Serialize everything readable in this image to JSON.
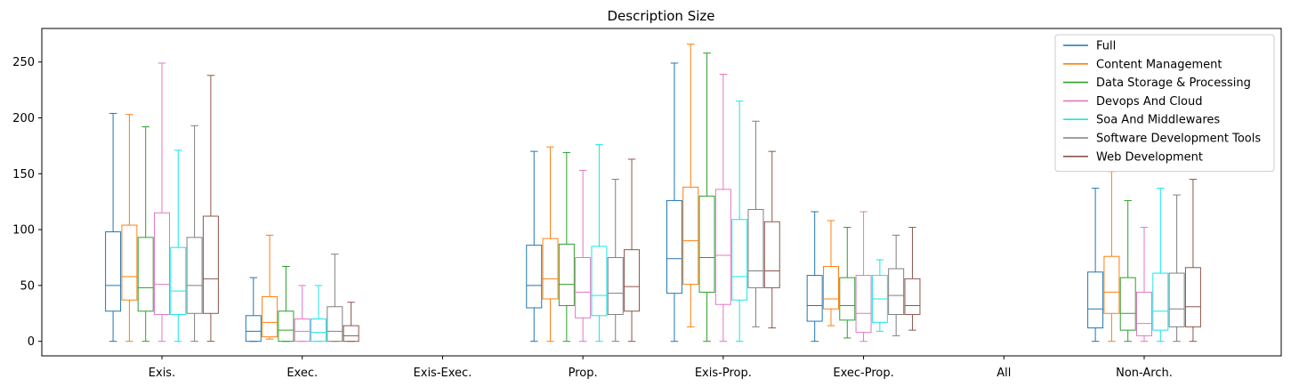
{
  "chart_data": {
    "type": "boxplot",
    "title": "Description Size",
    "xlabel": "",
    "ylabel": "",
    "ylim": [
      -13,
      280
    ],
    "yticks": [
      0,
      50,
      100,
      150,
      200,
      250
    ],
    "grid": false,
    "legend_position": "top-right",
    "categories": [
      "Exis.",
      "Exec.",
      "Exis-Exec.",
      "Prop.",
      "Exis-Prop.",
      "Exec-Prop.",
      "All",
      "Non-Arch."
    ],
    "series": [
      {
        "name": "Full",
        "color": "#1f77b4",
        "boxes": [
          {
            "whisker_low": 0,
            "q1": 27,
            "median": 50,
            "q3": 98,
            "whisker_high": 204
          },
          {
            "whisker_low": 0,
            "q1": 0,
            "median": 9,
            "q3": 23,
            "whisker_high": 57
          },
          null,
          {
            "whisker_low": 0,
            "q1": 30,
            "median": 50,
            "q3": 86,
            "whisker_high": 170
          },
          {
            "whisker_low": 0,
            "q1": 43,
            "median": 74,
            "q3": 126,
            "whisker_high": 249
          },
          {
            "whisker_low": 0,
            "q1": 18,
            "median": 32,
            "q3": 59,
            "whisker_high": 116
          },
          null,
          {
            "whisker_low": 0,
            "q1": 12,
            "median": 29,
            "q3": 62,
            "whisker_high": 137
          }
        ]
      },
      {
        "name": "Content Management",
        "color": "#ff7f0e",
        "boxes": [
          {
            "whisker_low": 0,
            "q1": 37,
            "median": 58,
            "q3": 104,
            "whisker_high": 203
          },
          {
            "whisker_low": 2,
            "q1": 4,
            "median": 17,
            "q3": 40,
            "whisker_high": 95
          },
          null,
          {
            "whisker_low": 0,
            "q1": 38,
            "median": 56,
            "q3": 92,
            "whisker_high": 174
          },
          {
            "whisker_low": 13,
            "q1": 51,
            "median": 90,
            "q3": 138,
            "whisker_high": 266
          },
          {
            "whisker_low": 14,
            "q1": 29,
            "median": 38,
            "q3": 67,
            "whisker_high": 108
          },
          null,
          {
            "whisker_low": 0,
            "q1": 25,
            "median": 44,
            "q3": 76,
            "whisker_high": 152
          }
        ]
      },
      {
        "name": "Data Storage & Processing",
        "color": "#2ca02c",
        "boxes": [
          {
            "whisker_low": 0,
            "q1": 27,
            "median": 48,
            "q3": 93,
            "whisker_high": 192
          },
          {
            "whisker_low": 0,
            "q1": 0,
            "median": 10,
            "q3": 27,
            "whisker_high": 67
          },
          null,
          {
            "whisker_low": 0,
            "q1": 32,
            "median": 51,
            "q3": 87,
            "whisker_high": 169
          },
          {
            "whisker_low": 0,
            "q1": 44,
            "median": 75,
            "q3": 130,
            "whisker_high": 258
          },
          {
            "whisker_low": 3,
            "q1": 19,
            "median": 32,
            "q3": 57,
            "whisker_high": 102
          },
          null,
          {
            "whisker_low": 0,
            "q1": 10,
            "median": 25,
            "q3": 57,
            "whisker_high": 126
          }
        ]
      },
      {
        "name": "Devops And Cloud",
        "color": "#e377c2",
        "boxes": [
          {
            "whisker_low": 0,
            "q1": 24,
            "median": 51,
            "q3": 115,
            "whisker_high": 249
          },
          {
            "whisker_low": 0,
            "q1": 0,
            "median": 9,
            "q3": 20,
            "whisker_high": 50
          },
          null,
          {
            "whisker_low": 0,
            "q1": 21,
            "median": 44,
            "q3": 75,
            "whisker_high": 153
          },
          {
            "whisker_low": 0,
            "q1": 33,
            "median": 77,
            "q3": 136,
            "whisker_high": 239
          },
          {
            "whisker_low": 0,
            "q1": 8,
            "median": 25,
            "q3": 59,
            "whisker_high": 116
          },
          null,
          {
            "whisker_low": 0,
            "q1": 5,
            "median": 16,
            "q3": 44,
            "whisker_high": 102
          }
        ]
      },
      {
        "name": "Soa And Middlewares",
        "color": "#17e6ea",
        "boxes": [
          {
            "whisker_low": 0,
            "q1": 24,
            "median": 45,
            "q3": 84,
            "whisker_high": 171
          },
          {
            "whisker_low": 0,
            "q1": 0,
            "median": 8,
            "q3": 20,
            "whisker_high": 50
          },
          null,
          {
            "whisker_low": 0,
            "q1": 23,
            "median": 41,
            "q3": 85,
            "whisker_high": 176
          },
          {
            "whisker_low": 0,
            "q1": 37,
            "median": 58,
            "q3": 109,
            "whisker_high": 215
          },
          {
            "whisker_low": 9,
            "q1": 17,
            "median": 38,
            "q3": 59,
            "whisker_high": 73
          },
          null,
          {
            "whisker_low": 0,
            "q1": 10,
            "median": 27,
            "q3": 61,
            "whisker_high": 137
          }
        ]
      },
      {
        "name": "Software Development Tools",
        "color": "#7f7f7f",
        "boxes": [
          {
            "whisker_low": 0,
            "q1": 25,
            "median": 50,
            "q3": 93,
            "whisker_high": 193
          },
          {
            "whisker_low": 0,
            "q1": 0,
            "median": 9,
            "q3": 31,
            "whisker_high": 78
          },
          null,
          {
            "whisker_low": 0,
            "q1": 24,
            "median": 43,
            "q3": 75,
            "whisker_high": 145
          },
          {
            "whisker_low": 13,
            "q1": 48,
            "median": 63,
            "q3": 118,
            "whisker_high": 197
          },
          {
            "whisker_low": 5,
            "q1": 24,
            "median": 41,
            "q3": 65,
            "whisker_high": 95
          },
          null,
          {
            "whisker_low": 0,
            "q1": 13,
            "median": 29,
            "q3": 61,
            "whisker_high": 131
          }
        ]
      },
      {
        "name": "Web Development",
        "color": "#8c564b",
        "boxes": [
          {
            "whisker_low": 0,
            "q1": 25,
            "median": 56,
            "q3": 112,
            "whisker_high": 238
          },
          {
            "whisker_low": 0,
            "q1": 0,
            "median": 5,
            "q3": 14,
            "whisker_high": 35
          },
          null,
          {
            "whisker_low": 0,
            "q1": 27,
            "median": 49,
            "q3": 82,
            "whisker_high": 163
          },
          {
            "whisker_low": 12,
            "q1": 48,
            "median": 63,
            "q3": 107,
            "whisker_high": 170
          },
          {
            "whisker_low": 10,
            "q1": 24,
            "median": 32,
            "q3": 56,
            "whisker_high": 102
          },
          null,
          {
            "whisker_low": 0,
            "q1": 13,
            "median": 31,
            "q3": 66,
            "whisker_high": 145
          }
        ]
      }
    ]
  }
}
